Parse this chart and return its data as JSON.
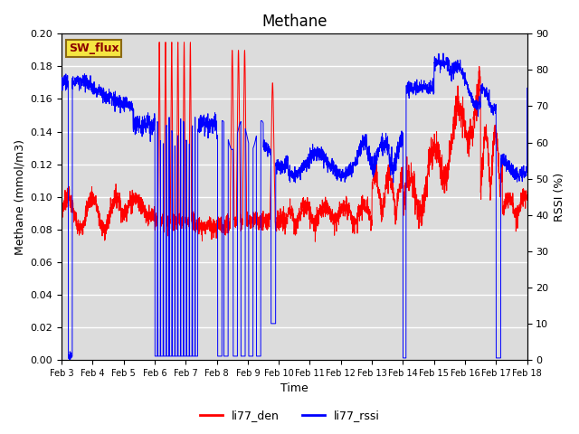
{
  "title": "Methane",
  "xlabel": "Time",
  "ylabel_left": "Methane (mmol/m3)",
  "ylabel_right": "RSSI (%)",
  "ylim_left": [
    0.0,
    0.2
  ],
  "ylim_right": [
    0,
    90
  ],
  "legend_labels": [
    "li77_den",
    "li77_rssi"
  ],
  "sw_flux_label": "SW_flux",
  "bg_color": "#dcdcdc",
  "grid_color": "#ffffff",
  "xtick_labels": [
    "Feb 3",
    "Feb 4",
    "Feb 5",
    "Feb 6",
    "Feb 7",
    "Feb 8",
    "Feb 9",
    "Feb 10",
    "Feb 11",
    "Feb 12",
    "Feb 13",
    "Feb 14",
    "Feb 15",
    "Feb 16",
    "Feb 17",
    "Feb 18"
  ],
  "title_fontsize": 12,
  "axis_fontsize": 9,
  "tick_fontsize": 8
}
